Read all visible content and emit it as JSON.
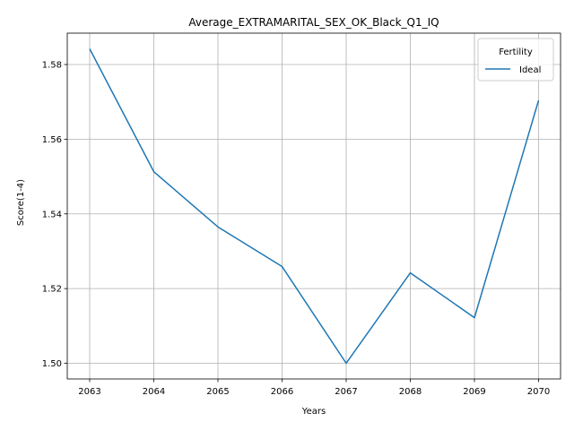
{
  "chart_data": {
    "type": "line",
    "title": "Average_EXTRAMARITAL_SEX_OK_Black_Q1_IQ",
    "xlabel": "Years",
    "ylabel": "Score(1-4)",
    "x": [
      "2063",
      "2064",
      "2065",
      "2066",
      "2067",
      "2068",
      "2069",
      "2070"
    ],
    "series": [
      {
        "name": "Ideal",
        "color": "#1f77b4",
        "values": [
          1.5842,
          1.5513,
          1.5365,
          1.5259,
          1.5,
          1.5242,
          1.5122,
          1.5704
        ]
      }
    ],
    "yticks": [
      "1.50",
      "1.52",
      "1.54",
      "1.56",
      "1.58"
    ],
    "ytick_values": [
      1.5,
      1.52,
      1.54,
      1.56,
      1.58
    ],
    "ylim": [
      1.4958,
      1.5884
    ],
    "grid": true,
    "legend": {
      "title": "Fertility",
      "placement": "top-right"
    }
  }
}
